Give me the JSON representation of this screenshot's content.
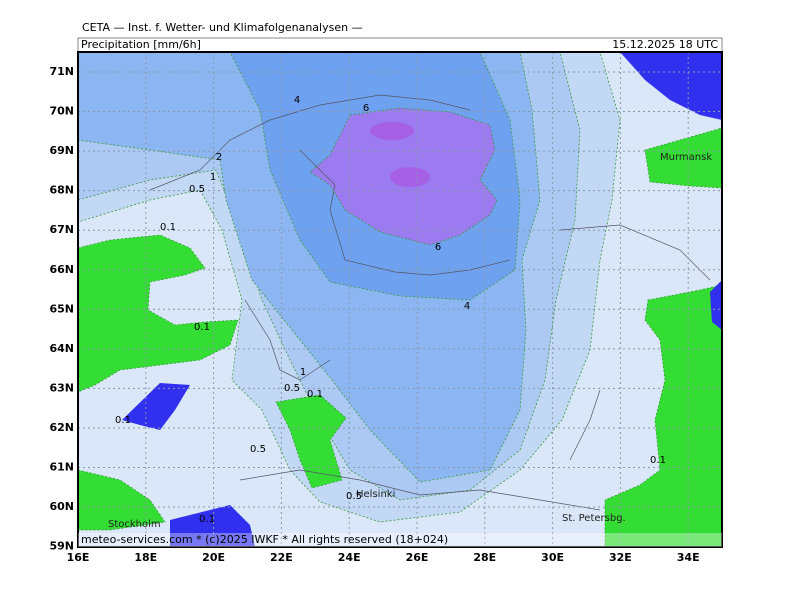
{
  "header": {
    "institute": "CETA — Inst. f. Wetter- und Klimafolgenanalysen —",
    "field": "Precipitation [mm/6h]",
    "valid_time": "15.12.2025 18 UTC"
  },
  "axes": {
    "latitude": [
      "71N",
      "70N",
      "69N",
      "68N",
      "67N",
      "66N",
      "65N",
      "64N",
      "63N",
      "62N",
      "61N",
      "60N",
      "59N"
    ],
    "longitude": [
      "16E",
      "18E",
      "20E",
      "22E",
      "24E",
      "26E",
      "28E",
      "30E",
      "32E",
      "34E"
    ]
  },
  "cities": {
    "murmansk": "Murmansk",
    "stockholm": "Stockholm",
    "helsinki": "Helsinki",
    "st_petersburg": "St. Petersbg."
  },
  "contour_labels": [
    "4",
    "6",
    "2",
    "1",
    "0.5",
    "0.1",
    "6",
    "4",
    "0.1",
    "1",
    "0.5",
    "0.1",
    "0.1",
    "0.5",
    "0.1",
    "0.5",
    "0.1"
  ],
  "footer": "meteo-services.com * (c)2025 IWKF * All rights reserved (18+024)"
}
